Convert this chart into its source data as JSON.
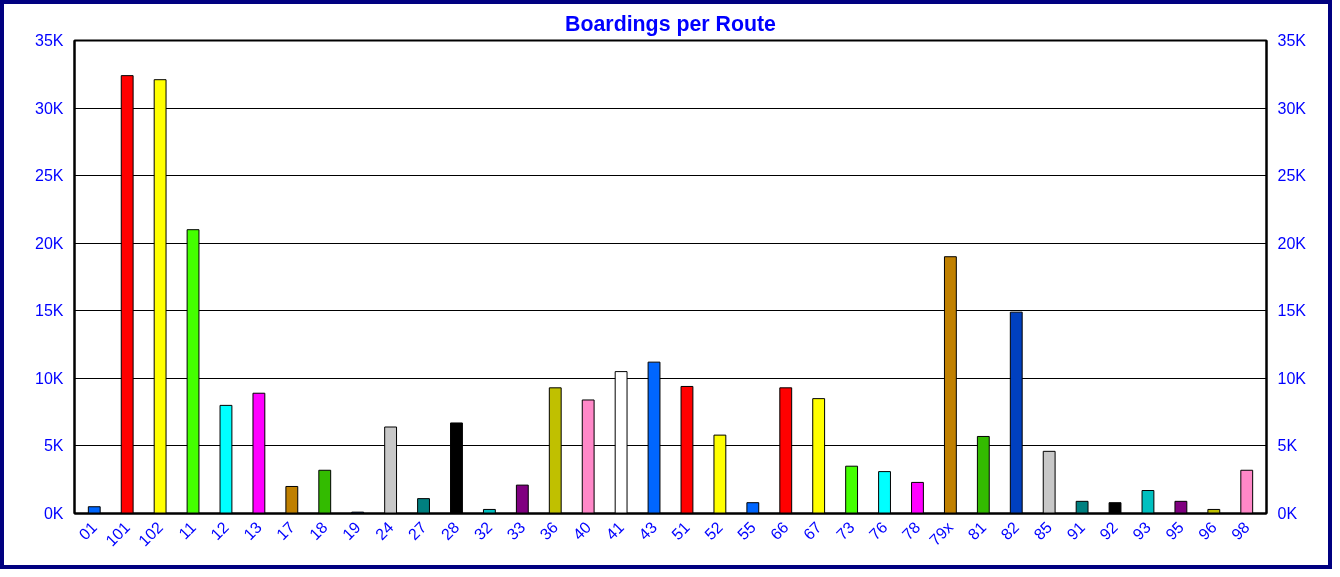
{
  "chart_data": {
    "type": "bar",
    "title": "Boardings per Route",
    "categories": [
      "01",
      "101",
      "102",
      "11",
      "12",
      "13",
      "17",
      "18",
      "19",
      "24",
      "27",
      "28",
      "32",
      "33",
      "36",
      "40",
      "41",
      "43",
      "51",
      "52",
      "55",
      "66",
      "67",
      "73",
      "76",
      "78",
      "79x",
      "81",
      "82",
      "85",
      "91",
      "92",
      "93",
      "95",
      "96",
      "98"
    ],
    "values": [
      500,
      32400,
      32100,
      21000,
      8000,
      8900,
      2000,
      3200,
      100,
      6400,
      1100,
      6700,
      300,
      2100,
      9300,
      8400,
      10500,
      11200,
      9400,
      5800,
      800,
      9300,
      8500,
      3500,
      3100,
      2300,
      19000,
      5700,
      14900,
      4600,
      900,
      800,
      1700,
      900,
      300,
      3200
    ],
    "colors": [
      "#0066ff",
      "#ff0000",
      "#ffff00",
      "#44ff00",
      "#00ffff",
      "#ff00ff",
      "#c08000",
      "#33bb00",
      "#0040c0",
      "#c8c8c8",
      "#008080",
      "#000000",
      "#00c0c0",
      "#800080",
      "#c0c000",
      "#ff88c8",
      "#ffffff",
      "#0066ff",
      "#ff0000",
      "#ffff00",
      "#0066ff",
      "#ff0000",
      "#ffff00",
      "#44ff00",
      "#00ffff",
      "#ff00ff",
      "#c08000",
      "#33bb00",
      "#0040c0",
      "#c8c8c8",
      "#008080",
      "#000000",
      "#00c0c0",
      "#800080",
      "#c0c000",
      "#ff88c8"
    ],
    "ylim": [
      0,
      35000
    ],
    "yticks": [
      {
        "value": 0,
        "label": "0K"
      },
      {
        "value": 5000,
        "label": "5K"
      },
      {
        "value": 10000,
        "label": "10K"
      },
      {
        "value": 15000,
        "label": "15K"
      },
      {
        "value": 20000,
        "label": "20K"
      },
      {
        "value": 25000,
        "label": "25K"
      },
      {
        "value": 30000,
        "label": "30K"
      },
      {
        "value": 35000,
        "label": "35K"
      }
    ],
    "y2lim": [
      0,
      35000
    ],
    "y2ticks": [
      {
        "value": 0,
        "label": "0K"
      },
      {
        "value": 5000,
        "label": "5K"
      },
      {
        "value": 10000,
        "label": "10K"
      },
      {
        "value": 15000,
        "label": "15K"
      },
      {
        "value": 20000,
        "label": "20K"
      },
      {
        "value": 25000,
        "label": "25K"
      },
      {
        "value": 30000,
        "label": "30K"
      },
      {
        "value": 35000,
        "label": "35K"
      }
    ],
    "grid": "y"
  }
}
